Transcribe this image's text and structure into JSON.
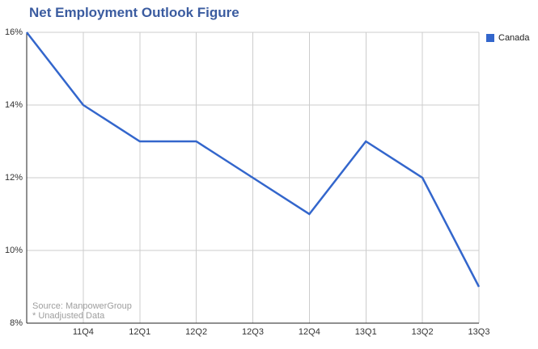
{
  "page": {
    "background": "#FFFFFF"
  },
  "title": {
    "text": "Net Employment Outlook Figure",
    "color": "#3B5CA0"
  },
  "legend": {
    "position": "right-top",
    "items": [
      {
        "label": "Canada",
        "color": "#3366CC"
      }
    ]
  },
  "source_note": {
    "line1": "Source: ManpowerGroup",
    "line2": "* Unadjusted Data"
  },
  "chart_data": {
    "type": "line",
    "title": "Net Employment Outlook Figure",
    "categories": [
      "",
      "11Q4",
      "12Q1",
      "12Q2",
      "12Q3",
      "12Q4",
      "13Q1",
      "13Q2",
      "13Q3"
    ],
    "series": [
      {
        "name": "Canada",
        "color": "#3366CC",
        "values": [
          16,
          14,
          13,
          13,
          12,
          11,
          13,
          12,
          9
        ]
      }
    ],
    "xlabel": "",
    "ylabel": "",
    "ylim": [
      8,
      16
    ],
    "y_ticks": [
      {
        "value": 16,
        "label": "16%"
      },
      {
        "value": 14,
        "label": "14%"
      },
      {
        "value": 12,
        "label": "12%"
      },
      {
        "value": 10,
        "label": "10%"
      },
      {
        "value": 8,
        "label": "8%"
      }
    ],
    "grid": true,
    "grid_color": "#CCCCCC",
    "axis_color": "#222222",
    "legend_position": "right-top"
  }
}
